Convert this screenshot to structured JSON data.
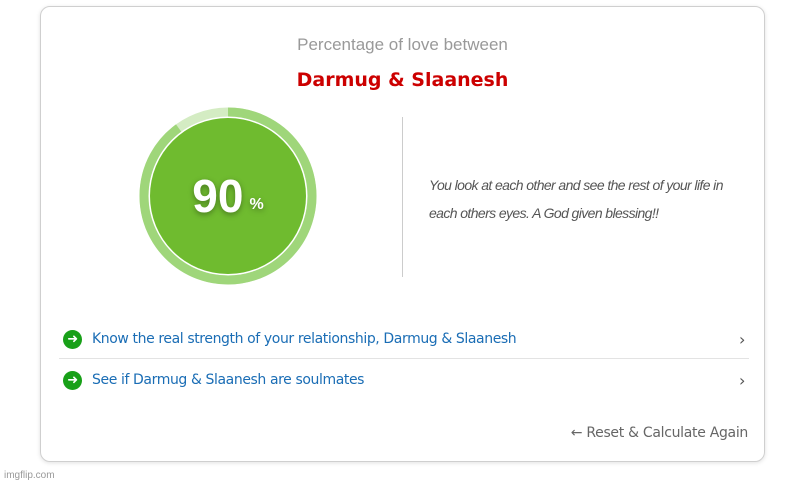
{
  "header": {
    "subtitle": "Percentage of love between",
    "names": "Darmug & Slaanesh"
  },
  "result": {
    "percent": 90,
    "percent_text": "90",
    "percent_symbol": "%",
    "message": "You look at each other and see the rest of your life in each others eyes. A God given blessing!!"
  },
  "links": [
    {
      "label": "Know the real strength of your relationship, Darmug & Slaanesh",
      "icon": "arrow-circle-right-icon"
    },
    {
      "label": "See if Darmug & Slaanesh are soulmates",
      "icon": "arrow-circle-right-icon"
    }
  ],
  "reset_label": "← Reset & Calculate Again",
  "watermark": "imgflip.com",
  "colors": {
    "inner": "#6fbb2f",
    "ring": "#9fd67a",
    "ring_rest": "#d4ecc3",
    "names": "#cc0000",
    "link": "#1a6db5",
    "icon": "#18a018"
  }
}
